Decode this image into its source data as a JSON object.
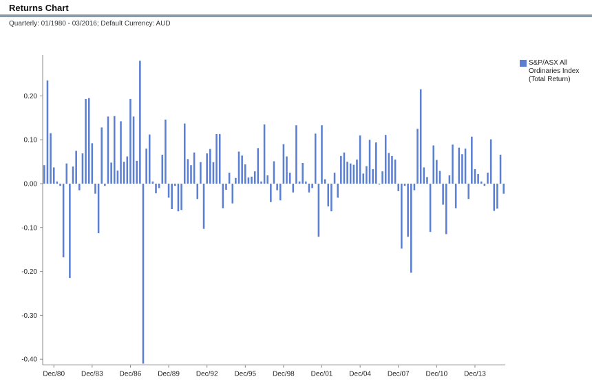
{
  "header": {
    "title": "Returns Chart",
    "subtitle": "Quarterly: 01/1980 - 03/2016; Default Currency: AUD"
  },
  "colors": {
    "bar": "#5b7fd1",
    "axis": "#888888",
    "rule": "#8a9aa8"
  },
  "legend": {
    "placement": "top-right",
    "label": "S&P/ASX All Ordinaries Index (Total Return)"
  },
  "chart_data": {
    "type": "bar",
    "title": "",
    "xlabel": "",
    "ylabel": "",
    "ylim": [
      -0.41,
      0.28
    ],
    "grid": false,
    "yticks": [
      0.2,
      0.1,
      0.0,
      -0.1,
      -0.2,
      -0.3,
      -0.4
    ],
    "ytick_labels": [
      "0.20",
      "0.10",
      "0.00",
      "-0.10",
      "-0.20",
      "-0.30",
      "-0.40"
    ],
    "xtick_labels": [
      "Dec/80",
      "Dec/83",
      "Dec/86",
      "Dec/89",
      "Dec/92",
      "Dec/95",
      "Dec/98",
      "Dec/01",
      "Dec/04",
      "Dec/07",
      "Dec/10",
      "Dec/13"
    ],
    "xtick_quarter_index": [
      3,
      15,
      27,
      39,
      51,
      63,
      75,
      87,
      99,
      111,
      123,
      135
    ],
    "period_start": "Q1 1980",
    "period_end": "Q1 2016",
    "series": [
      {
        "name": "S&P/ASX All Ordinaries Index (Total Return)",
        "values": [
          0.042,
          0.235,
          0.115,
          0.037,
          0.005,
          -0.005,
          -0.168,
          0.046,
          -0.215,
          0.039,
          0.075,
          -0.015,
          0.069,
          0.193,
          0.195,
          0.092,
          -0.023,
          -0.113,
          0.128,
          -0.005,
          0.153,
          0.048,
          0.154,
          0.03,
          0.142,
          0.05,
          0.062,
          0.193,
          0.153,
          0.052,
          0.28,
          -0.41,
          0.08,
          0.112,
          0.005,
          -0.022,
          -0.01,
          0.066,
          0.146,
          -0.032,
          -0.058,
          -0.005,
          -0.063,
          -0.06,
          0.137,
          0.056,
          0.042,
          0.071,
          -0.035,
          0.049,
          -0.103,
          0.069,
          0.079,
          0.049,
          0.113,
          0.113,
          -0.056,
          -0.014,
          0.025,
          -0.045,
          0.013,
          0.073,
          0.064,
          0.044,
          0.014,
          0.016,
          0.028,
          0.081,
          0.005,
          0.135,
          0.019,
          -0.042,
          0.051,
          -0.015,
          -0.038,
          0.09,
          0.062,
          0.025,
          -0.02,
          0.133,
          0.005,
          0.047,
          0.005,
          -0.02,
          -0.01,
          0.114,
          -0.121,
          0.133,
          0.01,
          -0.052,
          -0.063,
          0.025,
          -0.032,
          0.063,
          0.071,
          0.05,
          0.046,
          0.043,
          0.055,
          0.11,
          0.023,
          0.04,
          0.1,
          0.033,
          0.094,
          -0.002,
          0.028,
          0.111,
          0.07,
          0.063,
          0.055,
          -0.017,
          -0.148,
          -0.005,
          -0.121,
          -0.203,
          -0.015,
          0.125,
          0.215,
          0.037,
          0.015,
          -0.11,
          0.087,
          0.054,
          0.029,
          -0.048,
          -0.115,
          0.019,
          0.089,
          -0.056,
          0.082,
          0.067,
          0.08,
          -0.035,
          0.107,
          0.033,
          0.022,
          0.005,
          -0.005,
          0.025,
          0.101,
          -0.062,
          -0.057,
          0.066,
          -0.023
        ]
      }
    ]
  }
}
